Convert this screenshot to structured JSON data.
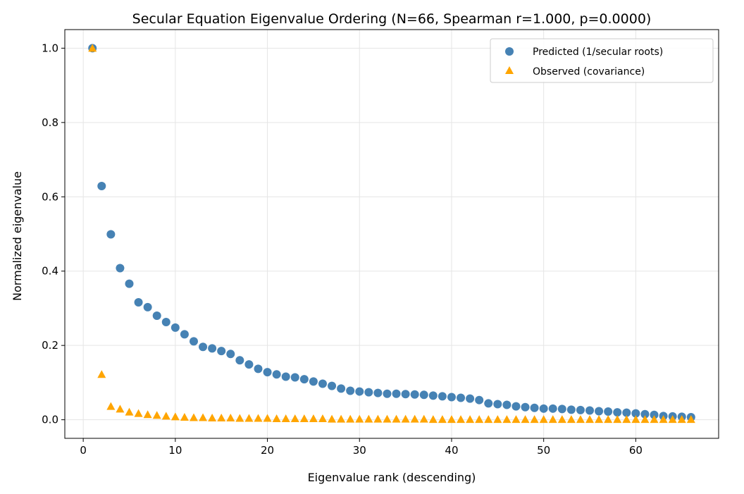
{
  "chart_data": {
    "type": "scatter",
    "title": "Secular Equation Eigenvalue Ordering (N=66, Spearman r=1.000, p=0.0000)",
    "xlabel": "Eigenvalue rank (descending)",
    "ylabel": "Normalized eigenvalue",
    "xlim": [
      -2,
      69
    ],
    "ylim": [
      -0.05,
      1.05
    ],
    "xticks": [
      0,
      10,
      20,
      30,
      40,
      50,
      60
    ],
    "yticks": [
      0.0,
      0.2,
      0.4,
      0.6,
      0.8,
      1.0
    ],
    "ytick_labels": [
      "0.0",
      "0.2",
      "0.4",
      "0.6",
      "0.8",
      "1.0"
    ],
    "grid": true,
    "legend_position": "top-right",
    "series": [
      {
        "name": "Predicted (1/secular roots)",
        "marker": "circle",
        "color": "#4682b4",
        "values": [
          1.0,
          0.629,
          0.499,
          0.408,
          0.366,
          0.316,
          0.303,
          0.28,
          0.263,
          0.248,
          0.23,
          0.211,
          0.196,
          0.192,
          0.185,
          0.177,
          0.16,
          0.149,
          0.137,
          0.128,
          0.122,
          0.116,
          0.114,
          0.109,
          0.103,
          0.097,
          0.091,
          0.084,
          0.078,
          0.076,
          0.074,
          0.072,
          0.07,
          0.07,
          0.069,
          0.068,
          0.067,
          0.065,
          0.063,
          0.061,
          0.059,
          0.057,
          0.053,
          0.044,
          0.042,
          0.04,
          0.036,
          0.034,
          0.032,
          0.03,
          0.03,
          0.029,
          0.027,
          0.026,
          0.025,
          0.023,
          0.022,
          0.02,
          0.019,
          0.017,
          0.015,
          0.013,
          0.01,
          0.009,
          0.008,
          0.007
        ]
      },
      {
        "name": "Observed (covariance)",
        "marker": "triangle",
        "color": "#ffa500",
        "values": [
          1.0,
          0.122,
          0.036,
          0.029,
          0.021,
          0.017,
          0.014,
          0.012,
          0.01,
          0.008,
          0.007,
          0.006,
          0.006,
          0.005,
          0.005,
          0.005,
          0.004,
          0.004,
          0.004,
          0.004,
          0.003,
          0.003,
          0.003,
          0.003,
          0.003,
          0.003,
          0.002,
          0.002,
          0.002,
          0.002,
          0.002,
          0.002,
          0.002,
          0.002,
          0.002,
          0.002,
          0.002,
          0.001,
          0.001,
          0.001,
          0.001,
          0.001,
          0.001,
          0.001,
          0.001,
          0.001,
          0.001,
          0.001,
          0.001,
          0.001,
          0.001,
          0.001,
          0.001,
          0.001,
          0.001,
          0.001,
          0.001,
          0.001,
          0.001,
          0.001,
          0.001,
          0.001,
          0.001,
          0.001,
          0.001,
          0.001
        ]
      }
    ]
  }
}
